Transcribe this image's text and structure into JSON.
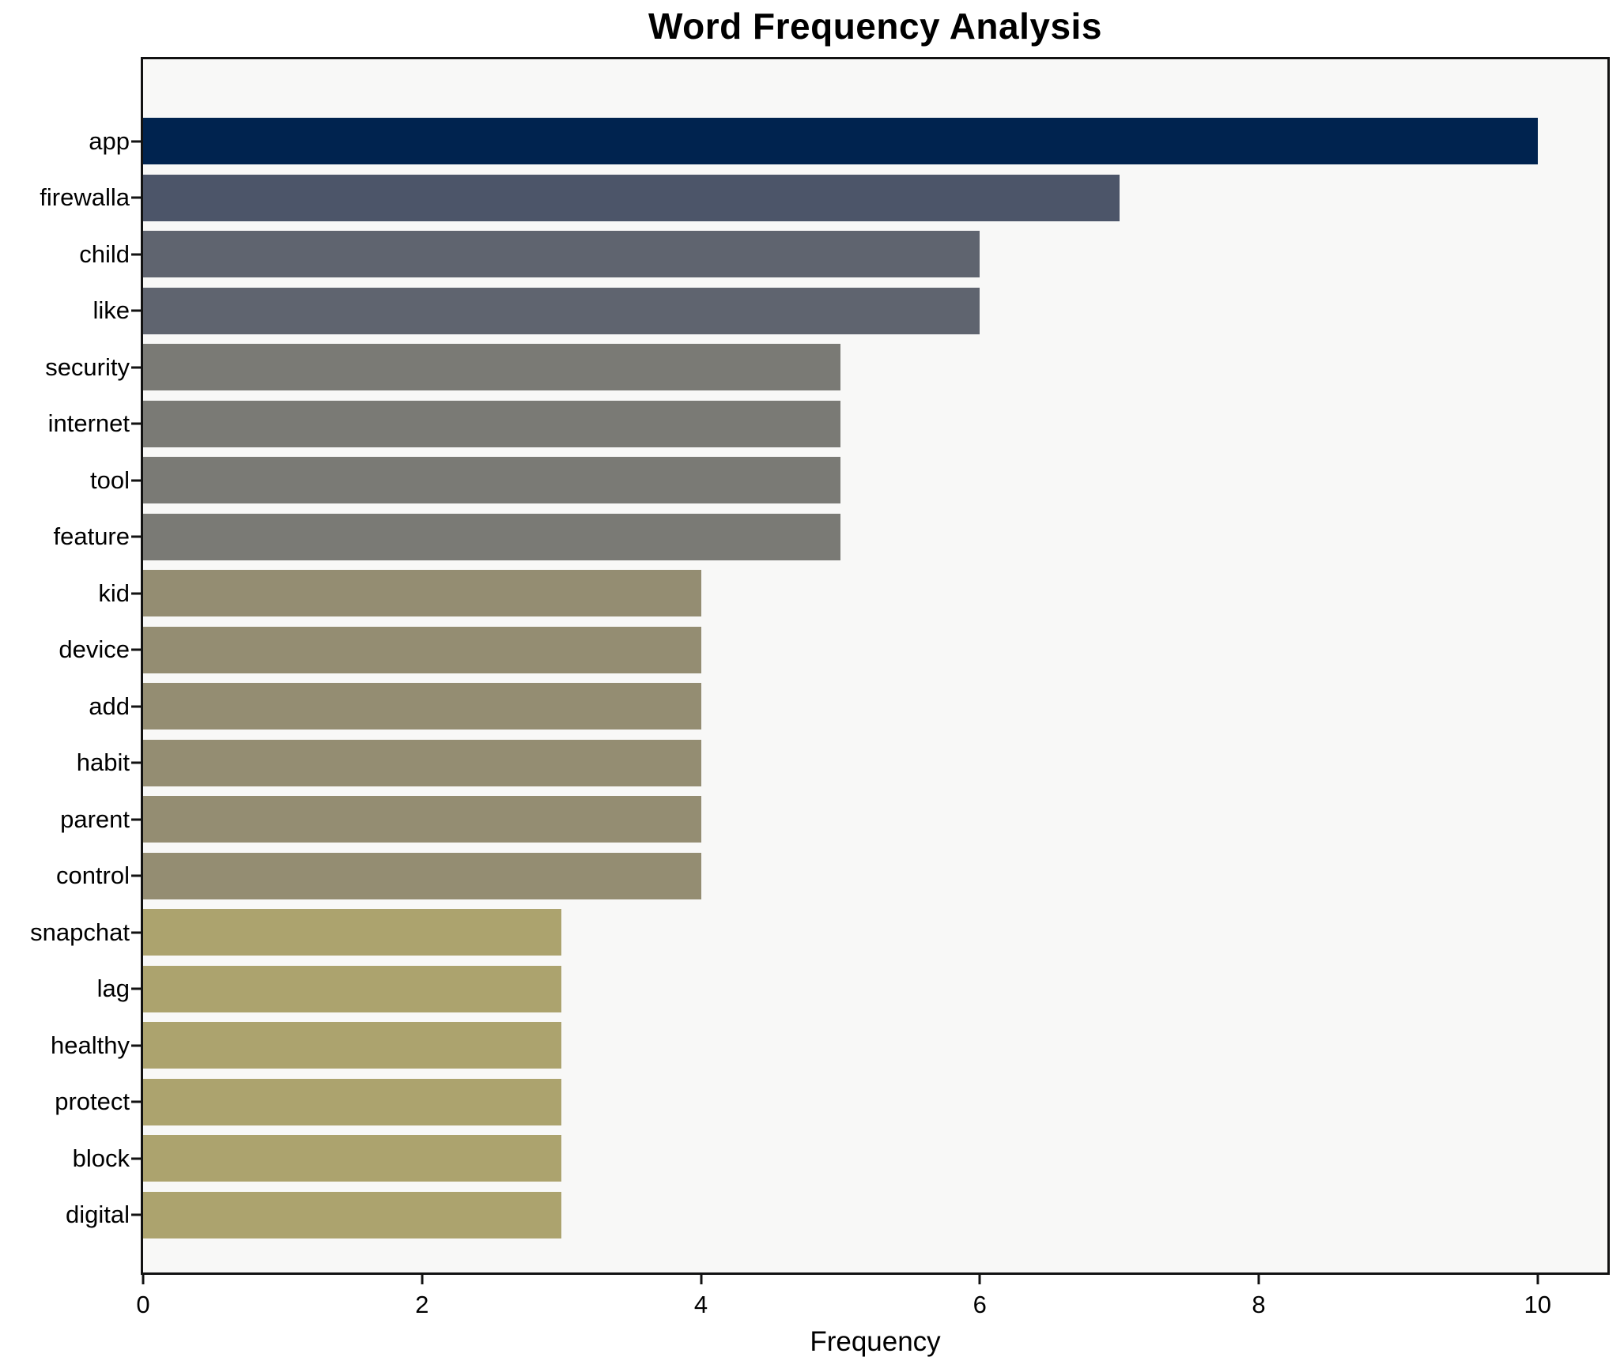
{
  "title": "Word Frequency Analysis",
  "chart_data": {
    "type": "bar",
    "orientation": "horizontal",
    "title": "Word Frequency Analysis",
    "xlabel": "Frequency",
    "ylabel": "",
    "categories": [
      "app",
      "firewalla",
      "child",
      "like",
      "security",
      "internet",
      "tool",
      "feature",
      "kid",
      "device",
      "add",
      "habit",
      "parent",
      "control",
      "snapchat",
      "lag",
      "healthy",
      "protect",
      "block",
      "digital"
    ],
    "values": [
      10,
      7,
      6,
      6,
      5,
      5,
      5,
      5,
      4,
      4,
      4,
      4,
      4,
      4,
      3,
      3,
      3,
      3,
      3,
      3
    ],
    "bar_colors": [
      "#00234f",
      "#4c5569",
      "#5f646f",
      "#5f646f",
      "#7a7a75",
      "#7a7a75",
      "#7a7a75",
      "#7a7a75",
      "#948d72",
      "#948d72",
      "#948d72",
      "#948d72",
      "#948d72",
      "#948d72",
      "#aca36e",
      "#aca36e",
      "#aca36e",
      "#aca36e",
      "#aca36e",
      "#aca36e"
    ],
    "xticks": [
      0,
      2,
      4,
      6,
      8,
      10
    ],
    "xlim": [
      0,
      10.5
    ],
    "grid": false,
    "legend_position": "none",
    "colors": {
      "plot_background": "#f8f8f7",
      "figure_background": "#ffffff",
      "spine": "#121212",
      "text": "#000000"
    }
  }
}
